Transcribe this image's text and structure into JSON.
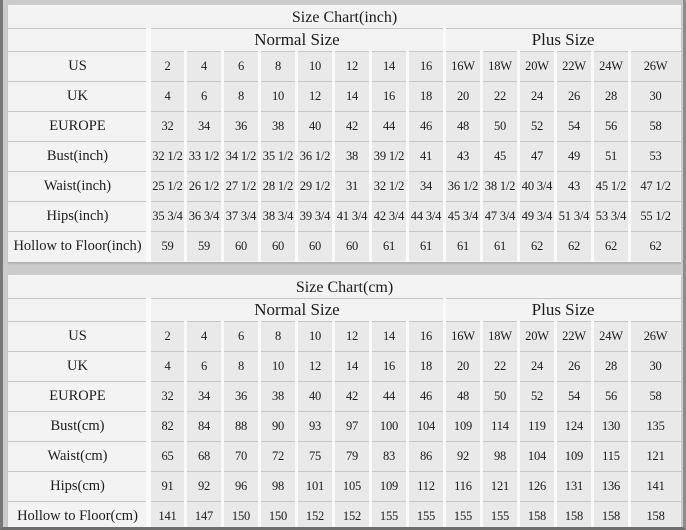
{
  "page": {
    "background_color": "#cbcbcb",
    "data_cell_color": "#e9e9e9",
    "label_cell_color": "#f3f3f3",
    "grid_line_color": "#c6c6c6",
    "column_gap_color": "#fafafa"
  },
  "chart_data": [
    {
      "type": "table",
      "title": "Size Chart(inch)",
      "group_headers": [
        {
          "label": "Normal Size",
          "span": 8
        },
        {
          "label": "Plus Size",
          "span": 6
        }
      ],
      "rows": [
        {
          "label": "US",
          "values": [
            "2",
            "4",
            "6",
            "8",
            "10",
            "12",
            "14",
            "16",
            "16W",
            "18W",
            "20W",
            "22W",
            "24W",
            "26W"
          ]
        },
        {
          "label": "UK",
          "values": [
            "4",
            "6",
            "8",
            "10",
            "12",
            "14",
            "16",
            "18",
            "20",
            "22",
            "24",
            "26",
            "28",
            "30"
          ]
        },
        {
          "label": "EUROPE",
          "values": [
            "32",
            "34",
            "36",
            "38",
            "40",
            "42",
            "44",
            "46",
            "48",
            "50",
            "52",
            "54",
            "56",
            "58"
          ]
        },
        {
          "label": "Bust(inch)",
          "values": [
            "32 1/2",
            "33 1/2",
            "34 1/2",
            "35 1/2",
            "36 1/2",
            "38",
            "39 1/2",
            "41",
            "43",
            "45",
            "47",
            "49",
            "51",
            "53"
          ]
        },
        {
          "label": "Waist(inch)",
          "values": [
            "25 1/2",
            "26 1/2",
            "27 1/2",
            "28 1/2",
            "29 1/2",
            "31",
            "32 1/2",
            "34",
            "36 1/2",
            "38 1/2",
            "40 3/4",
            "43",
            "45 1/2",
            "47 1/2"
          ]
        },
        {
          "label": "Hips(inch)",
          "values": [
            "35 3/4",
            "36 3/4",
            "37 3/4",
            "38 3/4",
            "39 3/4",
            "41 3/4",
            "42 3/4",
            "44 3/4",
            "45 3/4",
            "47 3/4",
            "49 3/4",
            "51 3/4",
            "53 3/4",
            "55 1/2"
          ]
        },
        {
          "label": "Hollow to Floor(inch)",
          "values": [
            "59",
            "59",
            "60",
            "60",
            "60",
            "60",
            "61",
            "61",
            "61",
            "61",
            "62",
            "62",
            "62",
            "62"
          ]
        }
      ]
    },
    {
      "type": "table",
      "title": "Size Chart(cm)",
      "group_headers": [
        {
          "label": "Normal Size",
          "span": 8
        },
        {
          "label": "Plus Size",
          "span": 6
        }
      ],
      "rows": [
        {
          "label": "US",
          "values": [
            "2",
            "4",
            "6",
            "8",
            "10",
            "12",
            "14",
            "16",
            "16W",
            "18W",
            "20W",
            "22W",
            "24W",
            "26W"
          ]
        },
        {
          "label": "UK",
          "values": [
            "4",
            "6",
            "8",
            "10",
            "12",
            "14",
            "16",
            "18",
            "20",
            "22",
            "24",
            "26",
            "28",
            "30"
          ]
        },
        {
          "label": "EUROPE",
          "values": [
            "32",
            "34",
            "36",
            "38",
            "40",
            "42",
            "44",
            "46",
            "48",
            "50",
            "52",
            "54",
            "56",
            "58"
          ]
        },
        {
          "label": "Bust(cm)",
          "values": [
            "82",
            "84",
            "88",
            "90",
            "93",
            "97",
            "100",
            "104",
            "109",
            "114",
            "119",
            "124",
            "130",
            "135"
          ]
        },
        {
          "label": "Waist(cm)",
          "values": [
            "65",
            "68",
            "70",
            "72",
            "75",
            "79",
            "83",
            "86",
            "92",
            "98",
            "104",
            "109",
            "115",
            "121"
          ]
        },
        {
          "label": "Hips(cm)",
          "values": [
            "91",
            "92",
            "96",
            "98",
            "101",
            "105",
            "109",
            "112",
            "116",
            "121",
            "126",
            "131",
            "136",
            "141"
          ]
        },
        {
          "label": "Hollow to Floor(cm)",
          "values": [
            "141",
            "147",
            "150",
            "150",
            "152",
            "152",
            "155",
            "155",
            "155",
            "155",
            "158",
            "158",
            "158",
            "158"
          ]
        }
      ]
    }
  ]
}
